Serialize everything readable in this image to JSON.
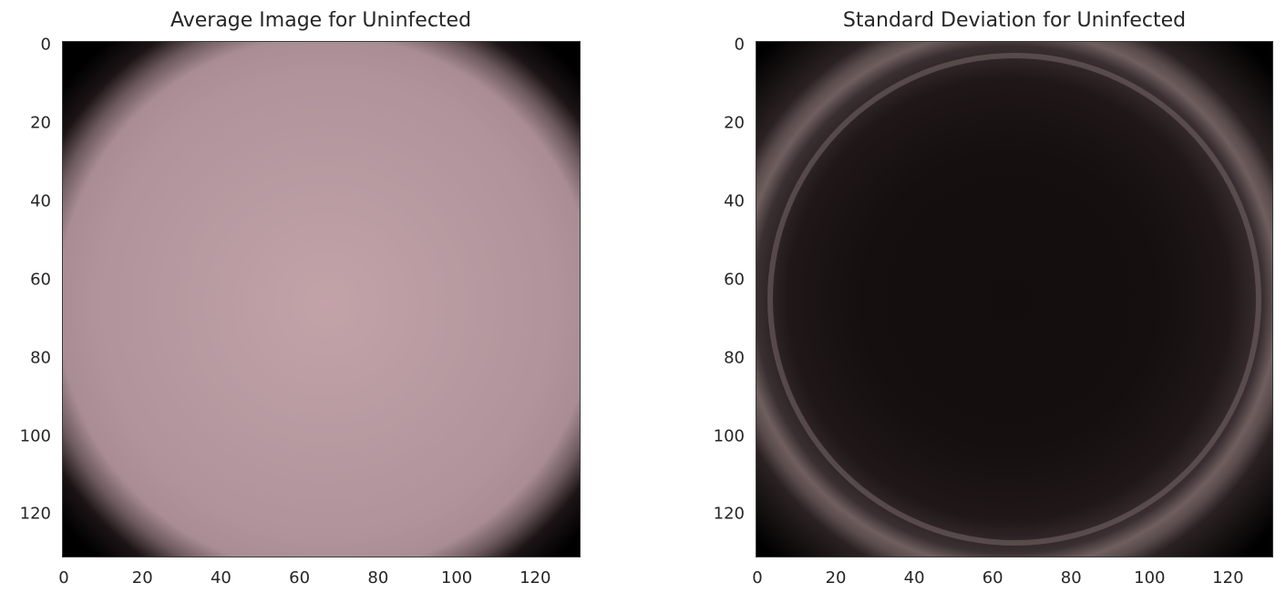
{
  "chart_data": [
    {
      "type": "heatmap",
      "title": "Average Image for Uninfected",
      "xlabel": "",
      "ylabel": "",
      "xlim": [
        0,
        132
      ],
      "ylim": [
        132,
        0
      ],
      "xticks": [
        "0",
        "20",
        "40",
        "60",
        "80",
        "100",
        "120"
      ],
      "yticks": [
        "0",
        "20",
        "40",
        "60",
        "80",
        "100",
        "120"
      ],
      "grid": false,
      "image": {
        "description_colors": {
          "center": "#c2a3a8",
          "body": "#b3949c",
          "edge": "#000000"
        }
      }
    },
    {
      "type": "heatmap",
      "title": "Standard Deviation for Uninfected",
      "xlabel": "",
      "ylabel": "",
      "xlim": [
        0,
        132
      ],
      "ylim": [
        132,
        0
      ],
      "xticks": [
        "0",
        "20",
        "40",
        "60",
        "80",
        "100",
        "120"
      ],
      "yticks": [
        "0",
        "20",
        "40",
        "60",
        "80",
        "100",
        "120"
      ],
      "grid": false,
      "image": {
        "description_colors": {
          "center": "#130d0d",
          "ring": "#6f5f5f",
          "edge": "#000000"
        }
      }
    }
  ]
}
